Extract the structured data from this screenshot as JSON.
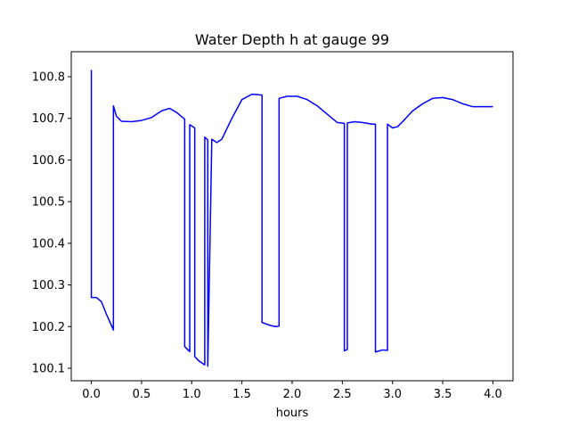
{
  "chart_data": {
    "type": "line",
    "title": "Water Depth h at gauge 99",
    "xlabel": "hours",
    "ylabel": "",
    "xlim": [
      -0.2,
      4.2
    ],
    "ylim": [
      100.07,
      100.86
    ],
    "xticks": [
      0.0,
      0.5,
      1.0,
      1.5,
      2.0,
      2.5,
      3.0,
      3.5,
      4.0
    ],
    "xtick_labels": [
      "0.0",
      "0.5",
      "1.0",
      "1.5",
      "2.0",
      "2.5",
      "3.0",
      "3.5",
      "4.0"
    ],
    "yticks": [
      100.1,
      100.2,
      100.3,
      100.4,
      100.5,
      100.6,
      100.7,
      100.8
    ],
    "ytick_labels": [
      "100.1",
      "100.2",
      "100.3",
      "100.4",
      "100.5",
      "100.6",
      "100.7",
      "100.8"
    ],
    "grid": false,
    "series": [
      {
        "color": "#0000ff",
        "x": [
          0.0,
          0.0,
          0.05,
          0.1,
          0.15,
          0.22,
          0.22,
          0.25,
          0.3,
          0.4,
          0.5,
          0.6,
          0.7,
          0.78,
          0.85,
          0.93,
          0.93,
          0.98,
          0.98,
          1.03,
          1.03,
          1.07,
          1.13,
          1.13,
          1.16,
          1.16,
          1.2,
          1.25,
          1.3,
          1.4,
          1.5,
          1.6,
          1.65,
          1.7,
          1.7,
          1.78,
          1.83,
          1.87,
          1.87,
          1.95,
          2.05,
          2.15,
          2.25,
          2.35,
          2.45,
          2.52,
          2.52,
          2.55,
          2.55,
          2.62,
          2.7,
          2.8,
          2.83,
          2.83,
          2.9,
          2.95,
          2.95,
          3.0,
          3.05,
          3.1,
          3.2,
          3.3,
          3.4,
          3.5,
          3.6,
          3.7,
          3.8,
          3.9,
          4.0
        ],
        "y": [
          100.816,
          100.27,
          100.27,
          100.26,
          100.23,
          100.192,
          100.73,
          100.705,
          100.693,
          100.692,
          100.695,
          100.702,
          100.718,
          100.724,
          100.714,
          100.698,
          100.152,
          100.14,
          100.685,
          100.677,
          100.128,
          100.118,
          100.108,
          100.655,
          100.648,
          100.105,
          100.65,
          100.642,
          100.65,
          100.7,
          100.745,
          100.758,
          100.757,
          100.756,
          100.21,
          100.203,
          100.2,
          100.201,
          100.748,
          100.753,
          100.753,
          100.745,
          100.73,
          100.71,
          100.69,
          100.688,
          100.142,
          100.145,
          100.689,
          100.692,
          100.69,
          100.686,
          100.686,
          100.139,
          100.144,
          100.143,
          100.686,
          100.677,
          100.68,
          100.692,
          100.718,
          100.735,
          100.748,
          100.75,
          100.745,
          100.735,
          100.728,
          100.728,
          100.728
        ]
      }
    ]
  }
}
